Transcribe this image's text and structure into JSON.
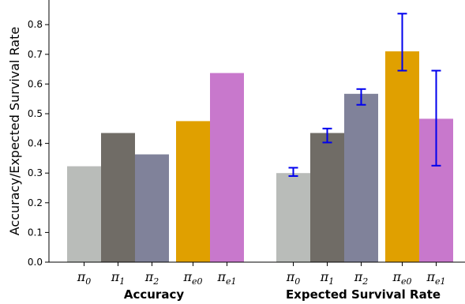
{
  "chart_data": {
    "type": "bar",
    "ylabel": "Accuracy/Expected Survival Rate",
    "xlabel": "",
    "title": "",
    "ylim": [
      0,
      0.88
    ],
    "yticks": [
      0.0,
      0.1,
      0.2,
      0.3,
      0.4,
      0.5,
      0.6,
      0.7,
      0.8
    ],
    "yticklabels": [
      "0.0",
      "0.1",
      "0.2",
      "0.3",
      "0.4",
      "0.5",
      "0.6",
      "0.7",
      "0.8"
    ],
    "grid": false,
    "categories": [
      {
        "base": "π",
        "sub": "0",
        "color": "#b9bcb9"
      },
      {
        "base": "π",
        "sub": "1",
        "color": "#706c66"
      },
      {
        "base": "π",
        "sub": "2",
        "color": "#80829a"
      },
      {
        "base": "π",
        "sub": "e0",
        "color": "#e0a000"
      },
      {
        "base": "π",
        "sub": "e1",
        "color": "#c878cc"
      }
    ],
    "errorbar_color": "#0000ee",
    "groups": [
      {
        "label": "Accuracy",
        "values": [
          0.323,
          0.435,
          0.363,
          0.475,
          0.637
        ],
        "errors": null
      },
      {
        "label": "Expected Survival Rate",
        "values": [
          0.3,
          0.435,
          0.567,
          0.71,
          0.483
        ],
        "errors": [
          [
            0.29,
            0.318
          ],
          [
            0.403,
            0.45
          ],
          [
            0.53,
            0.583
          ],
          [
            0.645,
            0.837
          ],
          [
            0.325,
            0.645
          ]
        ]
      }
    ]
  }
}
